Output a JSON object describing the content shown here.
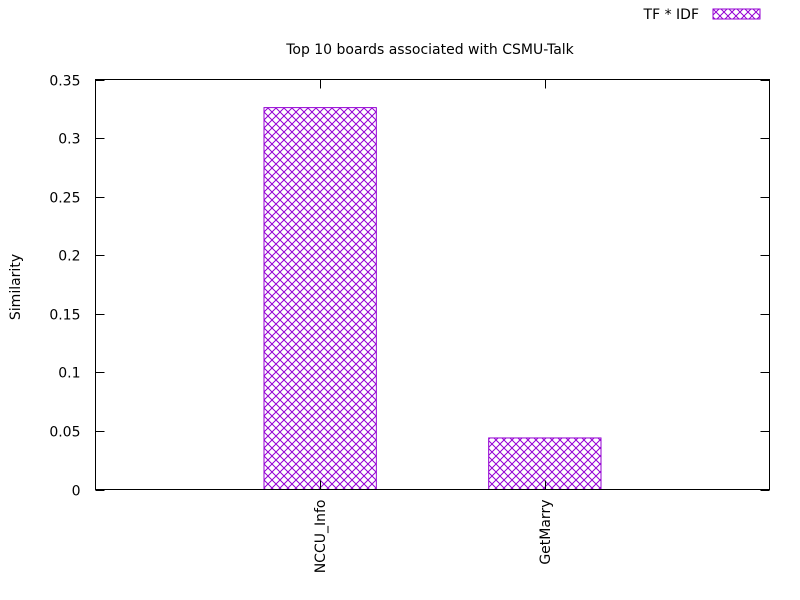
{
  "chart_data": {
    "type": "bar",
    "title": "Top 10 boards associated with CSMU-Talk",
    "xlabel": "",
    "ylabel": "Similarity",
    "categories": [
      "NCCU_Info",
      "GetMarry"
    ],
    "series": [
      {
        "name": "TF * IDF",
        "values": [
          0.326,
          0.044
        ]
      }
    ],
    "ylim": [
      0,
      0.35
    ],
    "yticks": [
      "0",
      "0.05",
      "0.1",
      "0.15",
      "0.2",
      "0.25",
      "0.3",
      "0.35"
    ],
    "grid": false,
    "legend_position": "top-right",
    "bar_color": "#9400d3",
    "bar_pattern": "crosshatch"
  }
}
